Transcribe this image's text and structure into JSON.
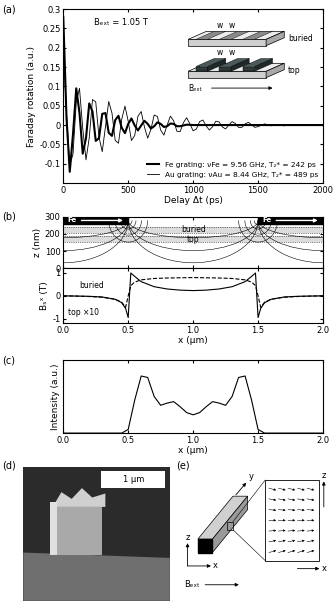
{
  "chart_data": [
    {
      "type": "line",
      "title": "(a)",
      "xlabel": "Delay Δt (ps)",
      "ylabel": "Faraday rotation (a.u.)",
      "annotations": [
        "Bₑₓₜ = 1.05 T"
      ],
      "xlim": [
        0,
        2000
      ],
      "ylim": [
        -0.15,
        0.3
      ],
      "xticks": [
        0,
        500,
        1000,
        1500,
        2000
      ],
      "yticks": [
        -0.1,
        -0.05,
        0,
        0.05,
        0.1,
        0.15,
        0.2,
        0.25,
        0.3
      ],
      "legend": "lower right",
      "series": [
        {
          "name": "Fe grating: νFe = 9.56 GHz, T₂* = 242 ps",
          "color": "#000000",
          "line_style": "solid",
          "x": [
            0,
            25,
            50,
            75,
            100,
            125,
            150,
            175,
            200,
            225,
            250,
            275,
            300,
            325,
            350,
            375,
            400,
            425,
            450,
            475,
            500,
            525,
            550,
            575,
            600,
            625,
            650,
            675,
            700,
            725,
            750,
            775,
            800,
            825,
            850,
            875,
            900,
            950,
            1000,
            1100,
            1200,
            1300,
            1400,
            1500,
            1600,
            1700,
            1800,
            1900,
            2000
          ],
          "values": [
            0.28,
            0.018,
            -0.121,
            -0.023,
            0.095,
            0.031,
            -0.074,
            -0.034,
            0.056,
            0.035,
            -0.041,
            -0.034,
            0.029,
            0.031,
            -0.02,
            -0.028,
            0.013,
            0.024,
            -0.007,
            -0.021,
            0.003,
            0.017,
            -0.001,
            -0.014,
            -0.001,
            0.011,
            0.003,
            -0.009,
            -0.003,
            0.007,
            0.003,
            -0.005,
            -0.003,
            0.004,
            0.003,
            -0.003,
            -0.003,
            0.001,
            0,
            0,
            0,
            0,
            0,
            0,
            0,
            0,
            0,
            0,
            0
          ]
        },
        {
          "name": "Au grating: νAu = 8.44 GHz, T₂* = 489 ps",
          "color": "#000000",
          "line_style": "solid",
          "x": [
            0,
            25,
            50,
            75,
            100,
            125,
            150,
            175,
            200,
            225,
            250,
            275,
            300,
            325,
            350,
            375,
            400,
            425,
            450,
            475,
            500,
            525,
            550,
            575,
            600,
            625,
            650,
            675,
            700,
            725,
            750,
            775,
            800,
            825,
            850,
            875,
            900,
            925,
            950,
            975,
            1000,
            1025,
            1050,
            1075,
            1100,
            1125,
            1150,
            1175,
            1200,
            1225,
            1250,
            1275,
            1300,
            1325,
            1350,
            1375,
            1400,
            1425,
            1450,
            1475,
            1500,
            1550,
            1600,
            1650,
            1700,
            1750,
            1800,
            1850,
            1900,
            1950,
            2000
          ],
          "values": [
            0.2,
            0.03,
            -0.104,
            -0.075,
            0.059,
            0.095,
            -0.009,
            -0.09,
            -0.033,
            0.066,
            0.06,
            -0.031,
            -0.069,
            -0.004,
            0.061,
            0.031,
            -0.04,
            -0.047,
            0.015,
            0.049,
            0.01,
            -0.04,
            -0.027,
            0.023,
            0.035,
            -0.005,
            -0.034,
            -0.011,
            0.026,
            0.022,
            -0.013,
            -0.026,
            0,
            0.023,
            0.011,
            -0.016,
            -0.017,
            0.006,
            0.019,
            0.003,
            -0.015,
            -0.01,
            0.009,
            0.013,
            -0.002,
            -0.013,
            -0.004,
            0.01,
            0.008,
            -0.005,
            -0.01,
            0,
            0.009,
            0.004,
            -0.006,
            -0.006,
            0.003,
            0.007,
            0.001,
            -0.006,
            -0.004,
            0.003,
            -0.002,
            0.002,
            -0.002,
            0.001,
            -0.001,
            0.001,
            -0.001,
            0,
            0
          ]
        }
      ]
    },
    {
      "type": "field_map",
      "title": "(b)",
      "ylabel": "z (nm)",
      "xlim": [
        0,
        2
      ],
      "ylim": [
        0,
        300
      ],
      "xticks": [
        {
          "value": 0,
          "label": "0.0"
        },
        0.5,
        {
          "value": 1,
          "label": "1.0"
        },
        1.5,
        {
          "value": 2,
          "label": "2.0"
        }
      ],
      "yticks": [
        0,
        100,
        200,
        300
      ],
      "tick_labels": "y",
      "bars": [
        {
          "label": "Fe",
          "x": [
            0,
            0.5
          ],
          "z": [
            255,
            300
          ]
        },
        {
          "label": "Fe",
          "x": [
            1.5,
            2
          ],
          "z": [
            255,
            300
          ]
        }
      ],
      "layers": [
        {
          "label": "buried",
          "z": [
            205,
            240
          ]
        },
        {
          "label": "top",
          "z": [
            150,
            185
          ]
        }
      ]
    },
    {
      "type": "line",
      "xlabel": "x (µm)",
      "ylabel": "Bₛˣ (T)",
      "xlim": [
        0,
        2
      ],
      "ylim": [
        -1.2,
        1.2
      ],
      "xticks": [
        {
          "value": 0,
          "label": "0.0"
        },
        0.5,
        {
          "value": 1,
          "label": "1.0"
        },
        1.5,
        {
          "value": 2,
          "label": "2.0"
        }
      ],
      "yticks": [
        -1,
        0,
        1
      ],
      "x": [
        0,
        0.1,
        0.2,
        0.3,
        0.4,
        0.45,
        0.48,
        0.5,
        0.52,
        0.55,
        0.6,
        0.7,
        0.8,
        0.9,
        1.0,
        1.1,
        1.2,
        1.3,
        1.4,
        1.45,
        1.48,
        1.5,
        1.52,
        1.55,
        1.6,
        1.7,
        1.8,
        1.9,
        2.0
      ],
      "series": [
        {
          "name": "buried",
          "color": "#000000",
          "line_style": "solid",
          "values": [
            0,
            -0.01,
            -0.02,
            -0.05,
            -0.15,
            -0.3,
            -0.55,
            -0.95,
            1.0,
            0.85,
            0.62,
            0.4,
            0.3,
            0.25,
            0.23,
            0.25,
            0.3,
            0.4,
            0.62,
            0.85,
            1.0,
            -0.95,
            -0.55,
            -0.3,
            -0.15,
            -0.05,
            -0.02,
            -0.01,
            0
          ]
        },
        {
          "name": "top ×10",
          "color": "#000000",
          "line_style": "dashed",
          "values": [
            0,
            -0.01,
            -0.03,
            -0.06,
            -0.15,
            -0.28,
            -0.5,
            0,
            0.45,
            0.6,
            0.7,
            0.76,
            0.78,
            0.79,
            0.8,
            0.79,
            0.78,
            0.76,
            0.7,
            0.6,
            0.45,
            0,
            -0.5,
            -0.28,
            -0.15,
            -0.06,
            -0.03,
            -0.01,
            0
          ]
        }
      ]
    },
    {
      "type": "line",
      "title": "(c)",
      "xlabel": "x (µm)",
      "ylabel": "Intensity (a.u.)",
      "xlim": [
        0,
        2
      ],
      "ylim": [
        0,
        1
      ],
      "xticks": [
        {
          "value": 0,
          "label": "0.0"
        },
        0.5,
        {
          "value": 1,
          "label": "1.0"
        },
        1.5,
        {
          "value": 2,
          "label": "2.0"
        }
      ],
      "tick_labels": "x",
      "color": "#000000",
      "line_style": "solid",
      "x": [
        0,
        0.05,
        0.1,
        0.15,
        0.2,
        0.25,
        0.3,
        0.35,
        0.4,
        0.45,
        0.5,
        0.55,
        0.6,
        0.65,
        0.7,
        0.75,
        0.8,
        0.85,
        0.9,
        0.95,
        1.0,
        1.05,
        1.1,
        1.15,
        1.2,
        1.25,
        1.3,
        1.35,
        1.4,
        1.45,
        1.5,
        1.55,
        1.6,
        1.65,
        1.7,
        1.75,
        1.8,
        1.85,
        1.9,
        1.95,
        2.0
      ],
      "values": [
        0,
        0,
        0,
        0,
        0,
        0,
        0,
        0,
        0,
        0,
        0.05,
        0.45,
        0.78,
        0.76,
        0.5,
        0.38,
        0.41,
        0.43,
        0.36,
        0.28,
        0.25,
        0.28,
        0.36,
        0.43,
        0.41,
        0.38,
        0.5,
        0.76,
        0.78,
        0.45,
        0.05,
        0,
        0,
        0,
        0,
        0,
        0,
        0,
        0,
        0,
        0
      ]
    }
  ],
  "diagrams": {
    "inset_a": {
      "gratings": [
        {
          "label": "buried",
          "w_labels": [
            "w",
            "w"
          ]
        },
        {
          "label": "top",
          "w_labels": [
            "w",
            "w"
          ]
        }
      ],
      "field_label": "Bₑₓₜ"
    },
    "panel_d": {
      "label": "(d)",
      "scale_bar": "1 µm"
    },
    "panel_e": {
      "label": "(e)",
      "axis_labels": {
        "x": "x",
        "y": "y",
        "z": "z"
      },
      "field_label": "Bₑₓₜ",
      "zoom_axis_labels": {
        "x": "x",
        "z": "z"
      }
    }
  }
}
